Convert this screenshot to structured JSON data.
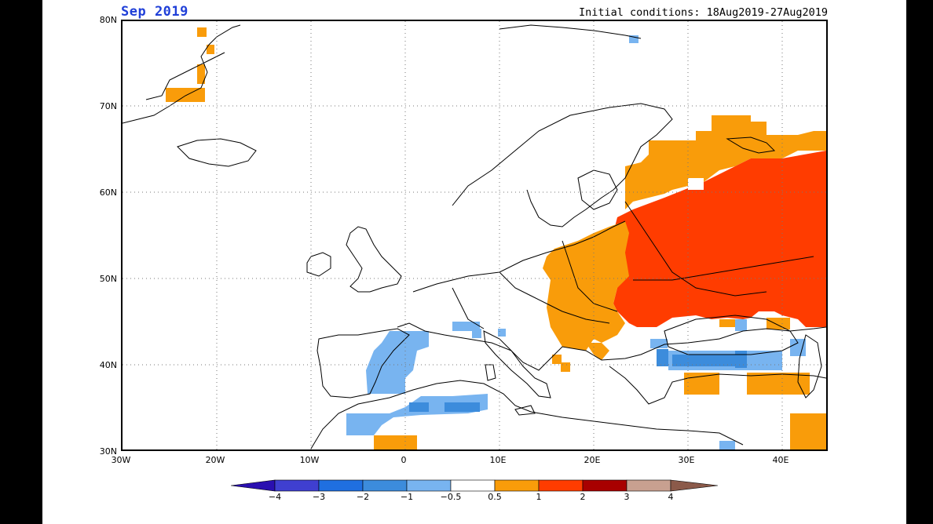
{
  "header": {
    "month": "Sep 2019",
    "initial_conditions": "Initial conditions: 18Aug2019-27Aug2019"
  },
  "axes": {
    "lat_labels": [
      "80N",
      "70N",
      "60N",
      "50N",
      "40N",
      "30N"
    ],
    "lon_labels": [
      "30W",
      "20W",
      "10W",
      "0",
      "10E",
      "20E",
      "30E",
      "40E"
    ]
  },
  "colors": {
    "background_frame": "#000000",
    "light_blue": "#78b4f0",
    "mid_blue": "#3c8cdc",
    "orange": "#f99c0a",
    "red_orange": "#ff3c00",
    "coast": "#000000",
    "grid": "#777777"
  },
  "legend": {
    "ticks": [
      "−4",
      "−3",
      "−2",
      "−1",
      "−0.5",
      "0.5",
      "1",
      "2",
      "3",
      "4"
    ],
    "colors": [
      "#2a0fb0",
      "#3f3fd0",
      "#1f6fe0",
      "#3c8cdc",
      "#78b4f0",
      "#ffffff",
      "#f99c0a",
      "#ff3c00",
      "#a80000",
      "#c8a090",
      "#8b5a4a"
    ]
  }
}
